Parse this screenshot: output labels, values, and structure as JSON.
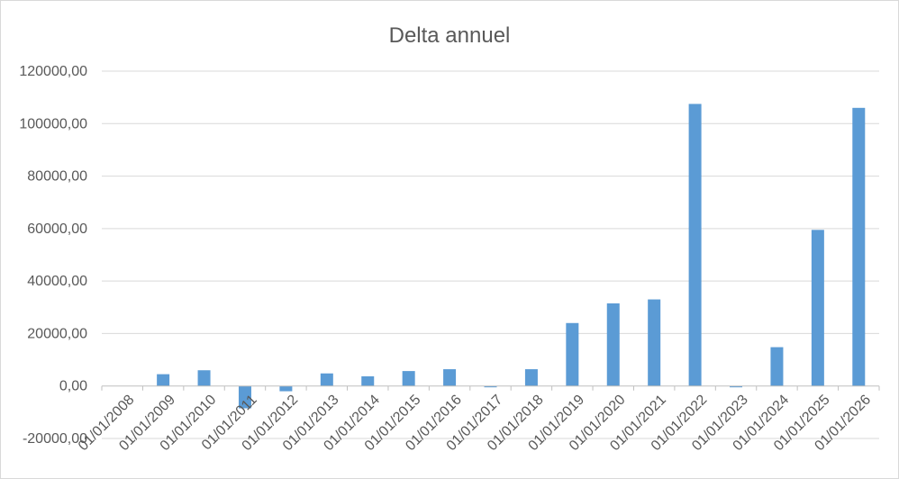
{
  "chart_data": {
    "type": "bar",
    "title": "Delta annuel",
    "xlabel": "",
    "ylabel": "",
    "ylim": [
      -20000,
      120000
    ],
    "yticks": [
      -20000,
      0,
      20000,
      40000,
      60000,
      80000,
      100000,
      120000
    ],
    "ytick_labels": [
      "-20000,00",
      "0,00",
      "20000,00",
      "40000,00",
      "60000,00",
      "80000,00",
      "100000,00",
      "120000,00"
    ],
    "grid": true,
    "legend": "none",
    "bar_color": "#5b9bd5",
    "categories": [
      "01/01/2008",
      "01/01/2009",
      "01/01/2010",
      "01/01/2011",
      "01/01/2012",
      "01/01/2013",
      "01/01/2014",
      "01/01/2015",
      "01/01/2016",
      "01/01/2017",
      "01/01/2018",
      "01/01/2019",
      "01/01/2020",
      "01/01/2021",
      "01/01/2022",
      "01/01/2023",
      "01/01/2024",
      "01/01/2025",
      "01/01/2026"
    ],
    "values": [
      0,
      4500,
      6000,
      -8500,
      -2000,
      4800,
      3700,
      5700,
      6400,
      -500,
      6400,
      24000,
      31500,
      33000,
      107500,
      -500,
      14800,
      59500,
      106000
    ]
  }
}
